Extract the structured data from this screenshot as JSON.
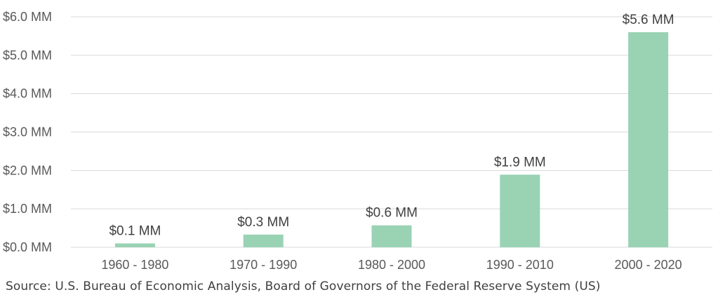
{
  "chart_data": {
    "type": "bar",
    "title": "",
    "xlabel": "",
    "ylabel": "",
    "categories": [
      "1960 - 1980",
      "1970 - 1990",
      "1980 - 2000",
      "1990 - 2010",
      "2000 - 2020"
    ],
    "values": [
      0.1,
      0.33,
      0.57,
      1.89,
      5.6
    ],
    "data_labels": [
      "$0.1 MM",
      "$0.3 MM",
      "$0.6 MM",
      "$1.9 MM",
      "$5.6 MM"
    ],
    "ylim": [
      0,
      6
    ],
    "yticks": [
      0,
      1,
      2,
      3,
      4,
      5,
      6
    ],
    "ytick_labels": [
      "$0.0 MM",
      "$1.0 MM",
      "$2.0 MM",
      "$3.0 MM",
      "$4.0 MM",
      "$5.0 MM",
      "$6.0 MM"
    ],
    "grid": true,
    "legend": "none",
    "colors": {
      "bar": "#99d3b4",
      "gridline": "#d9d9d9",
      "tick_text": "#595959",
      "label_text": "#404040"
    }
  },
  "source": "Source: U.S. Bureau of Economic Analysis, Board of Governors of the Federal Reserve System (US)"
}
